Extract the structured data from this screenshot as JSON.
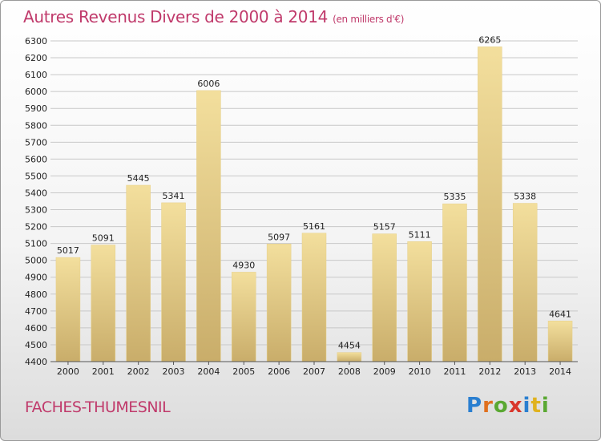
{
  "chart_data": {
    "type": "bar",
    "title": "Autres Revenus Divers de 2000 à 2014",
    "unit": "(en milliers d'€)",
    "categories": [
      "2000",
      "2001",
      "2002",
      "2003",
      "2004",
      "2005",
      "2006",
      "2007",
      "2008",
      "2009",
      "2010",
      "2011",
      "2012",
      "2013",
      "2014"
    ],
    "values": [
      5017,
      5091,
      5445,
      5341,
      6006,
      4930,
      5097,
      5161,
      4454,
      5157,
      5111,
      5335,
      6265,
      5338,
      4641
    ],
    "ylim": [
      4400,
      6300
    ],
    "yticks": [
      4400,
      4500,
      4600,
      4700,
      4800,
      4900,
      5000,
      5100,
      5200,
      5300,
      5400,
      5500,
      5600,
      5700,
      5800,
      5900,
      6000,
      6100,
      6200,
      6300
    ],
    "grid": true,
    "colors": {
      "bar_top": "#f3df9d",
      "bar_bottom": "#c9ad6a",
      "grid": "#c8c8c8",
      "accent": "#c03a6b"
    }
  },
  "place_name": "FACHES-THUMESNIL",
  "logo_text": "Proxiti"
}
